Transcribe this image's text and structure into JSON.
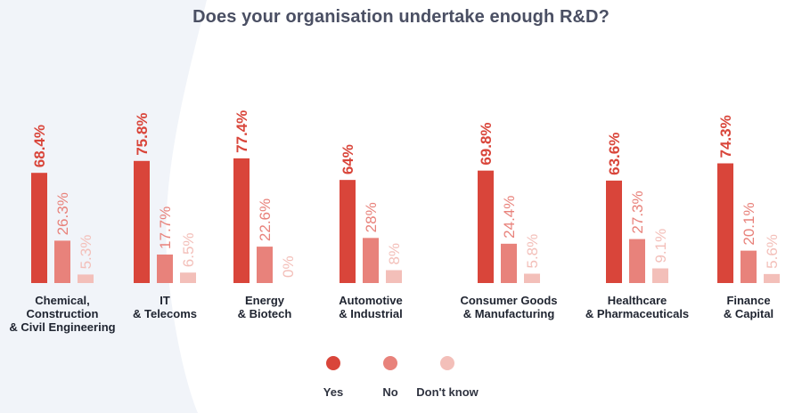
{
  "colors": {
    "yes": "#d9453a",
    "no": "#e8827b",
    "dont_know": "#f3bfb9",
    "title": "#4a4f63",
    "category_label": "#1f2430",
    "background_curve": "#f1f4f9"
  },
  "chart_data": {
    "type": "bar",
    "title": "Does your organisation undertake enough R&D?",
    "categories": [
      [
        "Chemical,",
        "Construction",
        "& Civil Engineering"
      ],
      [
        "IT",
        "& Telecoms"
      ],
      [
        "Energy",
        "& Biotech"
      ],
      [
        "Automotive",
        "& Industrial"
      ],
      [
        "Consumer Goods",
        "& Manufacturing"
      ],
      [
        "Healthcare",
        "& Pharmaceuticals"
      ],
      [
        "Finance",
        "& Capital"
      ]
    ],
    "series": [
      {
        "name": "Yes",
        "values": [
          68.4,
          75.8,
          77.4,
          64,
          69.8,
          63.6,
          74.3
        ],
        "labels": [
          "68.4%",
          "75.8%",
          "77.4%",
          "64%",
          "69.8%",
          "63.6%",
          "74.3%"
        ]
      },
      {
        "name": "No",
        "values": [
          26.3,
          17.7,
          22.6,
          28,
          24.4,
          27.3,
          20.1
        ],
        "labels": [
          "26.3%",
          "17.7%",
          "22.6%",
          "28%",
          "24.4%",
          "27.3%",
          "20.1%"
        ]
      },
      {
        "name": "Don't know",
        "values": [
          5.3,
          6.5,
          0,
          8,
          5.8,
          9.1,
          5.6
        ],
        "labels": [
          "5.3%",
          "6.5%",
          "0%",
          "8%",
          "5.8%",
          "9.1%",
          "5.6%"
        ]
      }
    ],
    "legend": {
      "position": "bottom-center"
    },
    "grid": false
  }
}
